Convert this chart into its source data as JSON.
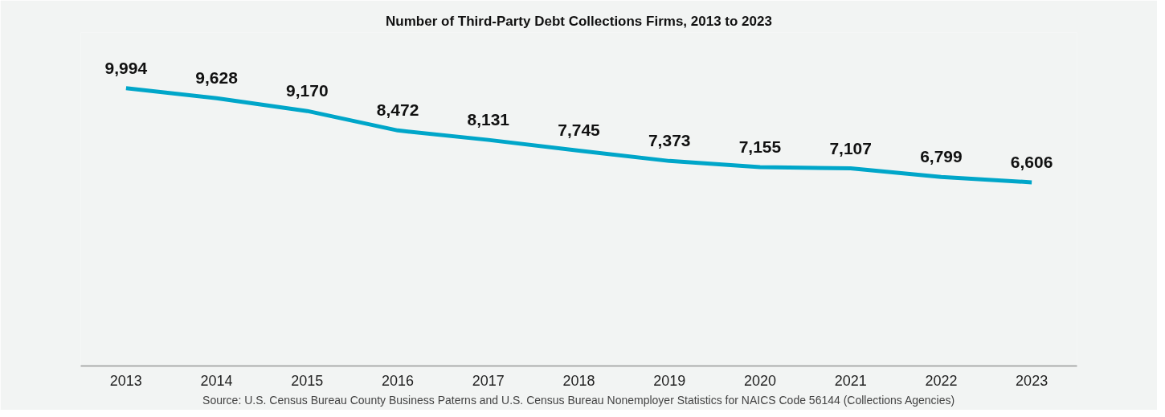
{
  "chart_data": {
    "type": "line",
    "title": "Number of Third-Party Debt Collections Firms, 2013 to 2023",
    "categories": [
      "2013",
      "2014",
      "2015",
      "2016",
      "2017",
      "2018",
      "2019",
      "2020",
      "2021",
      "2022",
      "2023"
    ],
    "series": [
      {
        "color": "#00a6c9",
        "values": [
          9994,
          9628,
          9170,
          8472,
          8131,
          7745,
          7373,
          7155,
          7107,
          6799,
          6606
        ],
        "value_labels": [
          "9,994",
          "9,628",
          "9,170",
          "8,472",
          "8,131",
          "7,745",
          "7,373",
          "7,155",
          "7,107",
          "6,799",
          "6,606"
        ]
      }
    ],
    "tick_labels": "x",
    "grid": false,
    "marker": "none",
    "line_style": "solid",
    "annotations": [
      "Source: U.S. Census Bureau County Business Paterns and U.S. Census Bureau Nonemployer Statistics for NAICS Code 56144 (Collections Agencies)"
    ]
  }
}
